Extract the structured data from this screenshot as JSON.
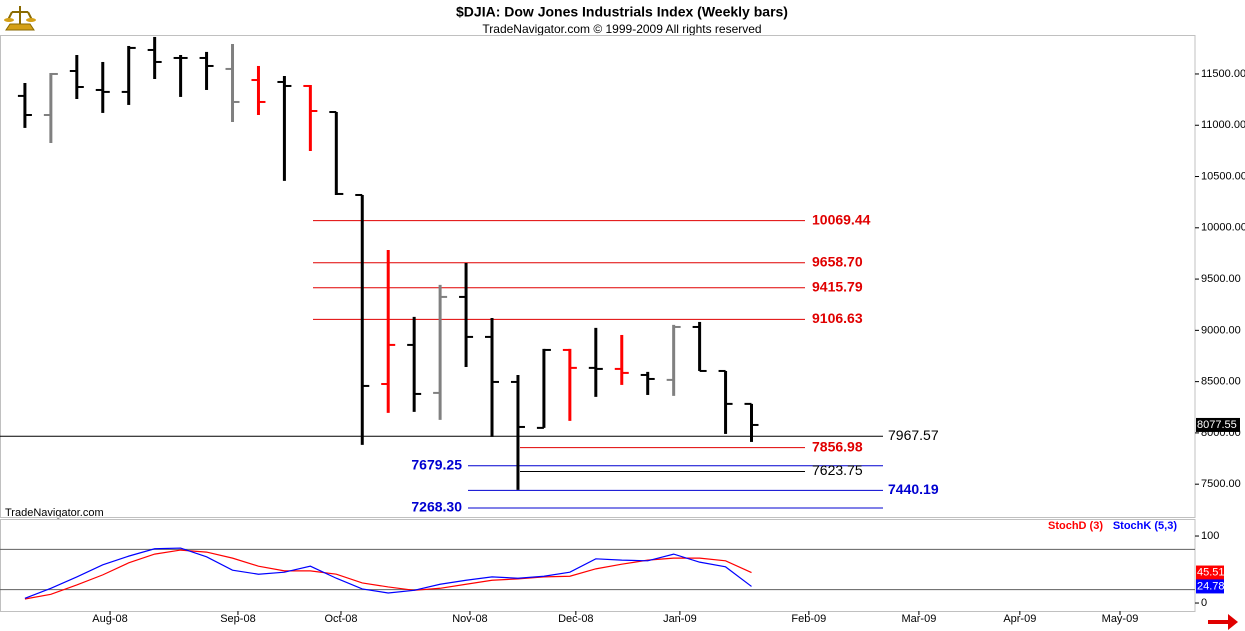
{
  "chart_data": [
    {
      "type": "ohlc",
      "title": "$DJIA:  Dow Jones Industrials Index  (Weekly bars)",
      "subtitle": "TradeNavigator.com © 1999-2009 All rights reserved",
      "watermark": "TradeNavigator.com",
      "categories": [
        null,
        null,
        null,
        null,
        null,
        null,
        null,
        null,
        null,
        null,
        null,
        null,
        null,
        null,
        null,
        null,
        null,
        null,
        null,
        null,
        null,
        null,
        null,
        null,
        null,
        null,
        null,
        null,
        null
      ],
      "open": [
        11286,
        11100,
        11529,
        11344,
        11325,
        11734,
        11656,
        11656,
        11549,
        11441,
        11422,
        11383,
        11129,
        10320,
        8477,
        8858,
        8390,
        9326,
        8936,
        8497,
        8049,
        8809,
        8634,
        8624,
        8565,
        8517,
        9033,
        8604,
        8283
      ],
      "high": [
        11412,
        11510,
        11685,
        11617,
        11773,
        11861,
        11685,
        11715,
        11792,
        11578,
        11480,
        11393,
        11129,
        10320,
        9784,
        9131,
        9443,
        9657,
        9121,
        8565,
        8819,
        8819,
        9024,
        8955,
        8595,
        9053,
        9082,
        8604,
        8283
      ],
      "low": [
        10974,
        10827,
        11256,
        11120,
        11198,
        11451,
        11276,
        11344,
        11032,
        11100,
        10457,
        10749,
        10320,
        7883,
        8195,
        8205,
        8127,
        8643,
        7961,
        7444,
        8049,
        8117,
        8351,
        8468,
        8370,
        8361,
        8604,
        7990,
        7912
      ],
      "close": [
        11100,
        11500,
        11373,
        11325,
        11754,
        11617,
        11656,
        11578,
        11227,
        11227,
        11383,
        11139,
        10330,
        8458,
        8858,
        8380,
        9326,
        8936,
        8497,
        8058,
        8809,
        8634,
        8624,
        8585,
        8526,
        9033,
        8604,
        8283,
        8077.55
      ],
      "bar_colors": [
        "#000000",
        "#808080",
        "#000000",
        "#000000",
        "#000000",
        "#000000",
        "#000000",
        "#000000",
        "#808080",
        "#ff0000",
        "#000000",
        "#ff0000",
        "#000000",
        "#000000",
        "#ff0000",
        "#000000",
        "#808080",
        "#000000",
        "#000000",
        "#000000",
        "#000000",
        "#ff0000",
        "#000000",
        "#ff0000",
        "#000000",
        "#808080",
        "#000000",
        "#000000",
        "#000000"
      ],
      "levels": [
        {
          "value": 10069.44,
          "label": "10069.44",
          "color": "#e00000"
        },
        {
          "value": 9658.7,
          "label": "9658.70",
          "color": "#e00000"
        },
        {
          "value": 9415.79,
          "label": "9415.79",
          "color": "#e00000"
        },
        {
          "value": 9106.63,
          "label": "9106.63",
          "color": "#e00000"
        },
        {
          "value": 7967.57,
          "label": "7967.57",
          "color": "#000000"
        },
        {
          "value": 7856.98,
          "label": "7856.98",
          "color": "#e00000"
        },
        {
          "value": 7679.25,
          "label": "7679.25",
          "color": "#0000d0"
        },
        {
          "value": 7623.75,
          "label": "7623.75",
          "color": "#000000"
        },
        {
          "value": 7440.19,
          "label": "7440.19",
          "color": "#0000d0"
        },
        {
          "value": 7268.3,
          "label": "7268.30",
          "color": "#0000d0"
        }
      ],
      "xlim": [
        -0.96,
        45.09
      ],
      "ylim": [
        7180,
        11880
      ],
      "yticks": [
        {
          "value": 7500,
          "label": "7500.00"
        },
        {
          "value": 8000,
          "label": "8000.00"
        },
        {
          "value": 8500,
          "label": "8500.00"
        },
        {
          "value": 9000,
          "label": "9000.00"
        },
        {
          "value": 9500,
          "label": "9500.00"
        },
        {
          "value": 10000,
          "label": "10000.00"
        },
        {
          "value": 10500,
          "label": "10500.00"
        },
        {
          "value": 11000,
          "label": "11000.00"
        },
        {
          "value": 11500,
          "label": "11500.00"
        }
      ]
    },
    {
      "type": "line",
      "categories": [
        null,
        null,
        null,
        null,
        null,
        null,
        null,
        null,
        null,
        null,
        null,
        null,
        null,
        null,
        null,
        null,
        null,
        null,
        null,
        null,
        null,
        null,
        null,
        null,
        null,
        null,
        null,
        null,
        null
      ],
      "series": [
        {
          "name": "StochD (3)",
          "color": "#ff0000",
          "values": [
            6,
            13,
            27,
            42,
            60,
            73,
            79,
            76,
            67,
            55,
            48,
            48,
            43,
            30,
            24,
            19,
            22,
            28,
            34,
            36,
            39,
            40,
            51,
            58,
            64,
            67,
            67,
            63,
            45.51
          ]
        },
        {
          "name": "StochK (5,3)",
          "color": "#0000ff",
          "values": [
            7,
            22,
            39,
            57,
            70,
            81,
            82,
            69,
            49,
            43,
            46,
            55,
            37,
            21,
            15,
            19,
            28,
            34,
            39,
            37,
            40,
            46,
            66,
            64,
            63,
            73,
            61,
            54,
            24.78
          ]
        }
      ],
      "levels": [
        20,
        80
      ],
      "xlim": [
        -0.96,
        45.09
      ],
      "xticks": [
        {
          "value": 3.28,
          "label": "Aug-08"
        },
        {
          "value": 8.21,
          "label": "Sep-08"
        },
        {
          "value": 12.18,
          "label": "Oct-08"
        },
        {
          "value": 17.15,
          "label": "Nov-08"
        },
        {
          "value": 21.23,
          "label": "Dec-08"
        },
        {
          "value": 25.24,
          "label": "Jan-09"
        },
        {
          "value": 30.21,
          "label": "Feb-09"
        },
        {
          "value": 34.45,
          "label": "Mar-09"
        },
        {
          "value": 38.34,
          "label": "Apr-09"
        },
        {
          "value": 42.2,
          "label": "May-09"
        }
      ],
      "ylim": [
        -11.9,
        125.4
      ],
      "yticks": [
        0,
        100
      ]
    }
  ]
}
